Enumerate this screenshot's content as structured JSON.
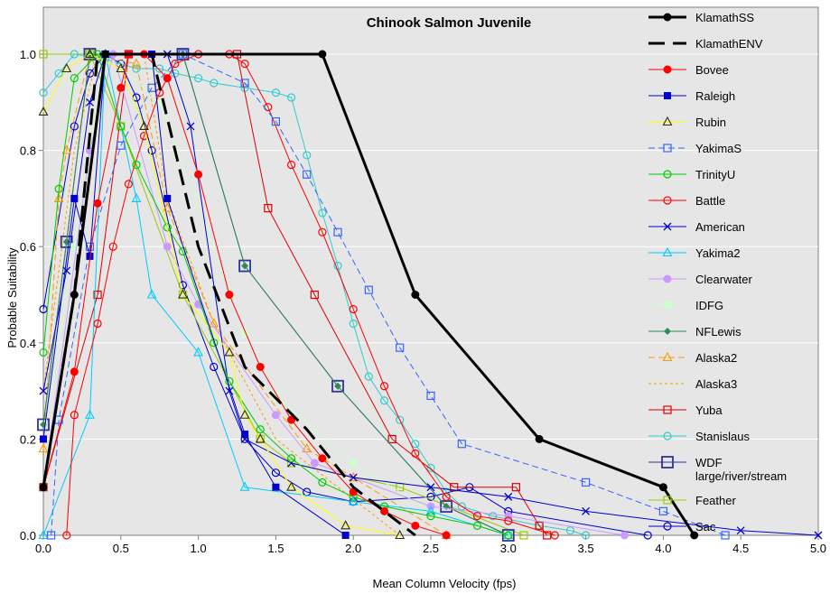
{
  "chart_data": {
    "type": "line",
    "title": "Chinook Salmon Juvenile",
    "xlabel": "Mean Column Velocity (fps)",
    "ylabel": "Probable Suitability",
    "xlim": [
      0,
      5
    ],
    "ylim": [
      0,
      1.05
    ],
    "x_ticks": [
      "0.0",
      "0.5",
      "1.0",
      "1.5",
      "2.0",
      "2.5",
      "3.0",
      "3.5",
      "4.0",
      "4.5",
      "5.0"
    ],
    "y_ticks": [
      "0.0",
      "0.2",
      "0.4",
      "0.6",
      "0.8",
      "1.0"
    ],
    "grid": "horizontal",
    "legend_position": "right",
    "series": [
      {
        "name": "KlamathSS",
        "color": "#000000",
        "dash": "solid",
        "marker": "circle-filled",
        "width": 3,
        "points": [
          [
            0,
            0.1
          ],
          [
            0.2,
            0.5
          ],
          [
            0.4,
            1.0
          ],
          [
            1.8,
            1.0
          ],
          [
            2.4,
            0.5
          ],
          [
            3.2,
            0.2
          ],
          [
            4.0,
            0.1
          ],
          [
            4.2,
            0.0
          ]
        ]
      },
      {
        "name": "KlamathENV",
        "color": "#000000",
        "dash": "long",
        "marker": "none",
        "width": 3,
        "points": [
          [
            0,
            0.1
          ],
          [
            0.2,
            0.5
          ],
          [
            0.35,
            1.0
          ],
          [
            0.7,
            1.0
          ],
          [
            1.0,
            0.6
          ],
          [
            1.3,
            0.35
          ],
          [
            1.7,
            0.22
          ],
          [
            2.0,
            0.1
          ],
          [
            2.4,
            0.0
          ]
        ]
      },
      {
        "name": "Bovee",
        "color": "#ff0000",
        "dash": "solid",
        "marker": "circle-filled",
        "width": 1,
        "points": [
          [
            0,
            0.1
          ],
          [
            0.2,
            0.34
          ],
          [
            0.35,
            0.69
          ],
          [
            0.5,
            0.93
          ],
          [
            0.55,
            1.0
          ],
          [
            0.65,
            1.0
          ],
          [
            0.8,
            0.95
          ],
          [
            1.0,
            0.75
          ],
          [
            1.2,
            0.5
          ],
          [
            1.4,
            0.35
          ],
          [
            1.6,
            0.24
          ],
          [
            1.8,
            0.16
          ],
          [
            2.0,
            0.09
          ],
          [
            2.2,
            0.05
          ],
          [
            2.4,
            0.02
          ],
          [
            2.6,
            0.0
          ]
        ]
      },
      {
        "name": "Raleigh",
        "color": "#0000cc",
        "dash": "solid",
        "marker": "square-filled",
        "width": 1,
        "points": [
          [
            0,
            0.2
          ],
          [
            0.2,
            0.7
          ],
          [
            0.3,
            0.58
          ],
          [
            0.4,
            1.0
          ],
          [
            0.7,
            1.0
          ],
          [
            0.8,
            0.7
          ],
          [
            1.3,
            0.21
          ],
          [
            1.5,
            0.1
          ],
          [
            1.95,
            0.0
          ]
        ]
      },
      {
        "name": "Rubin",
        "color": "#ffff00",
        "dash": "solid",
        "marker": "triangle-open",
        "width": 1,
        "points": [
          [
            0,
            0.88
          ],
          [
            0.15,
            0.97
          ],
          [
            0.3,
            1.0
          ],
          [
            0.5,
            0.97
          ],
          [
            0.65,
            0.85
          ],
          [
            0.9,
            0.5
          ],
          [
            1.2,
            0.38
          ],
          [
            1.3,
            0.25
          ],
          [
            1.4,
            0.2
          ],
          [
            1.6,
            0.1
          ],
          [
            1.95,
            0.02
          ],
          [
            2.3,
            0.0
          ]
        ]
      },
      {
        "name": "YakimaS",
        "color": "#3366ff",
        "dash": "dash",
        "marker": "square-open",
        "width": 1,
        "points": [
          [
            0.05,
            0.0
          ],
          [
            0.1,
            0.24
          ],
          [
            0.3,
            0.6
          ],
          [
            0.5,
            0.81
          ],
          [
            0.7,
            0.93
          ],
          [
            0.9,
            1.0
          ],
          [
            1.3,
            0.94
          ],
          [
            1.5,
            0.86
          ],
          [
            1.7,
            0.75
          ],
          [
            1.9,
            0.63
          ],
          [
            2.1,
            0.51
          ],
          [
            2.3,
            0.39
          ],
          [
            2.5,
            0.29
          ],
          [
            2.7,
            0.19
          ],
          [
            3.5,
            0.11
          ],
          [
            4.0,
            0.05
          ],
          [
            4.4,
            0.0
          ]
        ]
      },
      {
        "name": "TrinityU",
        "color": "#00cc00",
        "dash": "solid",
        "marker": "circle-open",
        "width": 1,
        "points": [
          [
            0,
            0.38
          ],
          [
            0.1,
            0.72
          ],
          [
            0.2,
            0.95
          ],
          [
            0.35,
            1.0
          ],
          [
            0.5,
            0.85
          ],
          [
            0.6,
            0.77
          ],
          [
            0.8,
            0.64
          ],
          [
            0.9,
            0.59
          ],
          [
            1.1,
            0.4
          ],
          [
            1.2,
            0.32
          ],
          [
            1.4,
            0.22
          ],
          [
            1.6,
            0.16
          ],
          [
            1.8,
            0.11
          ],
          [
            2.0,
            0.08
          ],
          [
            2.2,
            0.06
          ],
          [
            2.5,
            0.04
          ],
          [
            2.8,
            0.02
          ],
          [
            3.0,
            0.0
          ]
        ]
      },
      {
        "name": "Battle",
        "color": "#ff0000",
        "dash": "solid",
        "marker": "circle-open",
        "width": 1,
        "points": [
          [
            0.15,
            0.0
          ],
          [
            0.2,
            0.25
          ],
          [
            0.35,
            0.44
          ],
          [
            0.45,
            0.6
          ],
          [
            0.55,
            0.73
          ],
          [
            0.65,
            0.83
          ],
          [
            0.75,
            0.92
          ],
          [
            0.85,
            0.98
          ],
          [
            1.0,
            1.0
          ],
          [
            1.2,
            1.0
          ],
          [
            1.3,
            0.98
          ],
          [
            1.45,
            0.89
          ],
          [
            1.6,
            0.77
          ],
          [
            1.8,
            0.63
          ],
          [
            2.0,
            0.47
          ],
          [
            2.2,
            0.31
          ],
          [
            2.4,
            0.17
          ],
          [
            2.6,
            0.08
          ],
          [
            2.8,
            0.04
          ],
          [
            3.0,
            0.03
          ],
          [
            3.3,
            0.0
          ]
        ]
      },
      {
        "name": "American",
        "color": "#0000cc",
        "dash": "solid",
        "marker": "x",
        "width": 1,
        "points": [
          [
            0,
            0.3
          ],
          [
            0.15,
            0.55
          ],
          [
            0.3,
            0.9
          ],
          [
            0.4,
            1.0
          ],
          [
            0.8,
            1.0
          ],
          [
            0.95,
            0.85
          ],
          [
            1.2,
            0.3
          ],
          [
            1.3,
            0.2
          ],
          [
            1.6,
            0.15
          ],
          [
            2.0,
            0.12
          ],
          [
            2.5,
            0.1
          ],
          [
            3.0,
            0.08
          ],
          [
            3.5,
            0.05
          ],
          [
            4.5,
            0.01
          ],
          [
            5.0,
            0.0
          ]
        ]
      },
      {
        "name": "Yakima2",
        "color": "#00ccff",
        "dash": "solid",
        "marker": "triangle-open",
        "width": 1,
        "points": [
          [
            0,
            0.0
          ],
          [
            0.3,
            0.25
          ],
          [
            0.4,
            1.0
          ],
          [
            0.6,
            0.7
          ],
          [
            0.7,
            0.5
          ],
          [
            1.0,
            0.38
          ],
          [
            1.3,
            0.1
          ],
          [
            2.0,
            0.07
          ],
          [
            2.5,
            0.05
          ],
          [
            3.0,
            0.0
          ]
        ]
      },
      {
        "name": "Clearwater",
        "color": "#cc99ff",
        "dash": "solid",
        "marker": "circle-filled",
        "width": 1,
        "points": [
          [
            0,
            0.1
          ],
          [
            0.3,
            0.8
          ],
          [
            0.45,
            1.0
          ],
          [
            0.8,
            0.6
          ],
          [
            1.0,
            0.48
          ],
          [
            1.5,
            0.25
          ],
          [
            1.75,
            0.15
          ],
          [
            2.5,
            0.06
          ],
          [
            3.0,
            0.04
          ],
          [
            3.75,
            0.0
          ]
        ]
      },
      {
        "name": "IDFG",
        "color": "#ccffcc",
        "dash": "solid",
        "marker": "square-filled",
        "width": 1,
        "points": [
          [
            0,
            0.2
          ],
          [
            0.2,
            0.6
          ],
          [
            0.4,
            1.0
          ],
          [
            0.75,
            0.9
          ],
          [
            1.3,
            0.42
          ],
          [
            1.5,
            0.29
          ],
          [
            2.0,
            0.15
          ],
          [
            2.5,
            0.05
          ],
          [
            3.0,
            0.0
          ]
        ]
      },
      {
        "name": "NFLewis",
        "color": "#2e8b57",
        "dash": "solid",
        "marker": "diamond-filled",
        "width": 1,
        "points": [
          [
            0,
            0.23
          ],
          [
            0.15,
            0.61
          ],
          [
            0.3,
            1.0
          ],
          [
            0.9,
            1.0
          ],
          [
            1.3,
            0.56
          ],
          [
            1.9,
            0.31
          ],
          [
            2.6,
            0.06
          ],
          [
            3.0,
            0.0
          ]
        ]
      },
      {
        "name": "Alaska2",
        "color": "#ff9900",
        "dash": "dash",
        "marker": "triangle-open",
        "width": 1,
        "points": [
          [
            0,
            0.18
          ],
          [
            0.1,
            0.7
          ],
          [
            0.15,
            0.8
          ],
          [
            0.3,
            1.0
          ],
          [
            0.6,
            0.98
          ],
          [
            0.8,
            0.68
          ],
          [
            1.1,
            0.44
          ],
          [
            1.7,
            0.18
          ],
          [
            2.0,
            0.12
          ],
          [
            2.6,
            0.0
          ]
        ]
      },
      {
        "name": "Alaska3",
        "color": "#ff9900",
        "dash": "short",
        "marker": "none",
        "width": 1,
        "points": [
          [
            0,
            0.3
          ],
          [
            0.2,
            0.8
          ],
          [
            0.35,
            1.0
          ],
          [
            0.65,
            1.0
          ],
          [
            0.8,
            0.7
          ],
          [
            1.1,
            0.44
          ],
          [
            1.5,
            0.2
          ],
          [
            2.3,
            0.0
          ]
        ]
      },
      {
        "name": "Yuba",
        "color": "#dd0000",
        "dash": "solid",
        "marker": "square-open",
        "width": 1,
        "points": [
          [
            0,
            0.1
          ],
          [
            0.35,
            0.5
          ],
          [
            0.55,
            1.0
          ],
          [
            1.25,
            1.0
          ],
          [
            1.45,
            0.68
          ],
          [
            1.75,
            0.5
          ],
          [
            2.25,
            0.2
          ],
          [
            2.65,
            0.1
          ],
          [
            3.05,
            0.1
          ],
          [
            3.2,
            0.02
          ],
          [
            3.25,
            0.0
          ]
        ]
      },
      {
        "name": "Stanislaus",
        "color": "#33cccc",
        "dash": "solid",
        "marker": "circle-open",
        "width": 1,
        "points": [
          [
            0,
            0.92
          ],
          [
            0.1,
            0.96
          ],
          [
            0.2,
            1.0
          ],
          [
            0.4,
            0.99
          ],
          [
            0.6,
            0.97
          ],
          [
            0.75,
            0.97
          ],
          [
            0.85,
            0.96
          ],
          [
            1.0,
            0.95
          ],
          [
            1.1,
            0.94
          ],
          [
            1.3,
            0.93
          ],
          [
            1.5,
            0.92
          ],
          [
            1.6,
            0.91
          ],
          [
            1.7,
            0.79
          ],
          [
            1.8,
            0.67
          ],
          [
            1.9,
            0.56
          ],
          [
            2.0,
            0.44
          ],
          [
            2.1,
            0.33
          ],
          [
            2.2,
            0.28
          ],
          [
            2.3,
            0.24
          ],
          [
            2.4,
            0.19
          ],
          [
            2.5,
            0.14
          ],
          [
            2.6,
            0.09
          ],
          [
            2.7,
            0.06
          ],
          [
            2.9,
            0.04
          ],
          [
            3.2,
            0.02
          ],
          [
            3.4,
            0.01
          ],
          [
            3.5,
            0.0
          ]
        ]
      },
      {
        "name": "WDF\nlarge/river/stream",
        "color": "#333399",
        "dash": "solid",
        "marker": "square-open-large",
        "width": 1,
        "points": [
          [
            0,
            0.23
          ],
          [
            0.15,
            0.61
          ],
          [
            0.3,
            1.0
          ],
          [
            0.9,
            1.0
          ],
          [
            1.3,
            0.56
          ],
          [
            1.9,
            0.31
          ],
          [
            2.6,
            0.06
          ],
          [
            3.0,
            0.0
          ]
        ]
      },
      {
        "name": "Feather",
        "color": "#99cc00",
        "dash": "solid",
        "marker": "square-open",
        "width": 1,
        "points": [
          [
            0,
            1.0
          ],
          [
            0.3,
            1.0
          ],
          [
            0.5,
            0.85
          ],
          [
            0.9,
            0.5
          ],
          [
            1.4,
            0.2
          ],
          [
            1.6,
            0.15
          ],
          [
            2.3,
            0.1
          ],
          [
            3.1,
            0.0
          ]
        ]
      },
      {
        "name": "Sac",
        "color": "#0000cc",
        "dash": "solid",
        "marker": "circle-open",
        "width": 1,
        "points": [
          [
            0,
            0.47
          ],
          [
            0.2,
            0.85
          ],
          [
            0.3,
            0.96
          ],
          [
            0.4,
            1.0
          ],
          [
            0.5,
            0.98
          ],
          [
            0.6,
            0.91
          ],
          [
            0.7,
            0.8
          ],
          [
            0.9,
            0.52
          ],
          [
            1.1,
            0.35
          ],
          [
            1.3,
            0.2
          ],
          [
            1.5,
            0.13
          ],
          [
            1.7,
            0.09
          ],
          [
            2.0,
            0.07
          ],
          [
            2.5,
            0.08
          ],
          [
            2.75,
            0.1
          ],
          [
            3.0,
            0.05
          ],
          [
            3.9,
            0.0
          ]
        ]
      }
    ]
  }
}
